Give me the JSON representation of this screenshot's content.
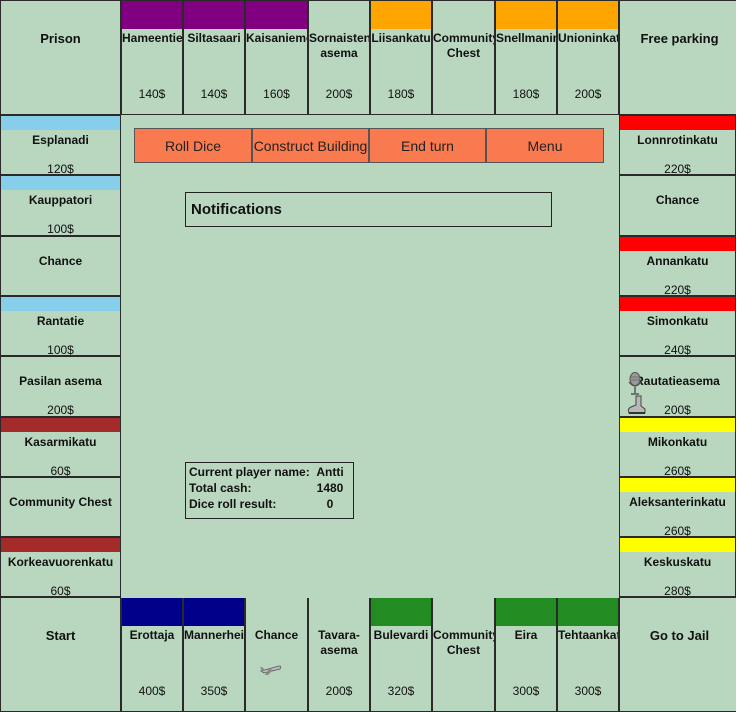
{
  "colors": {
    "board": "#b9d7bf",
    "button": "#f97a4f",
    "purple": "#800080",
    "orange": "#ffa500",
    "lightblue": "#87ceeb",
    "red": "#ff0000",
    "brown": "#a52a2a",
    "yellow": "#ffff00",
    "darkblue": "#00008b",
    "green": "#228b22"
  },
  "corners": {
    "prison": "Prison",
    "free_parking": "Free parking",
    "start": "Start",
    "go_to_jail": "Go to Jail"
  },
  "top_row": [
    {
      "name": "Hameentie",
      "price": "140$",
      "color": "#800080"
    },
    {
      "name": "Siltasaari",
      "price": "140$",
      "color": "#800080"
    },
    {
      "name": "Kaisanieme",
      "price": "160$",
      "color": "#800080"
    },
    {
      "name": "Sornaisten asema",
      "price": "200$",
      "color": ""
    },
    {
      "name": "Liisankatu",
      "price": "180$",
      "color": "#ffa500"
    },
    {
      "name": "Community Chest",
      "price": "",
      "color": ""
    },
    {
      "name": "Snellmanin",
      "price": "180$",
      "color": "#ffa500"
    },
    {
      "name": "Unioninkat",
      "price": "200$",
      "color": "#ffa500"
    }
  ],
  "bottom_row": [
    {
      "name": "Erottaja",
      "price": "400$",
      "color": "#00008b"
    },
    {
      "name": "Mannerhei",
      "price": "350$",
      "color": "#00008b"
    },
    {
      "name": "Chance",
      "price": "",
      "color": ""
    },
    {
      "name": "Tavara-asema",
      "price": "200$",
      "color": ""
    },
    {
      "name": "Bulevardi",
      "price": "320$",
      "color": "#228b22"
    },
    {
      "name": "Community Chest",
      "price": "",
      "color": ""
    },
    {
      "name": "Eira",
      "price": "300$",
      "color": "#228b22"
    },
    {
      "name": "Tehtaankat",
      "price": "300$",
      "color": "#228b22"
    }
  ],
  "left_col": [
    {
      "name": "Esplanadi",
      "price": "120$",
      "color": "#87ceeb"
    },
    {
      "name": "Kauppatori",
      "price": "100$",
      "color": "#87ceeb"
    },
    {
      "name": "Chance",
      "price": "",
      "color": ""
    },
    {
      "name": "Rantatie",
      "price": "100$",
      "color": "#87ceeb"
    },
    {
      "name": "Pasilan asema",
      "price": "200$",
      "color": ""
    },
    {
      "name": "Kasarmikatu",
      "price": "60$",
      "color": "#a52a2a"
    },
    {
      "name": "Community Chest",
      "price": "",
      "color": ""
    },
    {
      "name": "Korkeavuorenkatu",
      "price": "60$",
      "color": "#a52a2a"
    }
  ],
  "right_col": [
    {
      "name": "Lonnrotinkatu",
      "price": "220$",
      "color": "#ff0000"
    },
    {
      "name": "Chance",
      "price": "",
      "color": ""
    },
    {
      "name": "Annankatu",
      "price": "220$",
      "color": "#ff0000"
    },
    {
      "name": "Simonkatu",
      "price": "240$",
      "color": "#ff0000"
    },
    {
      "name": "Rautatieasema",
      "price": "200$",
      "color": ""
    },
    {
      "name": "Mikonkatu",
      "price": "260$",
      "color": "#ffff00"
    },
    {
      "name": "Aleksanterinkatu",
      "price": "260$",
      "color": "#ffff00"
    },
    {
      "name": "Keskuskatu",
      "price": "280$",
      "color": "#ffff00"
    }
  ],
  "buttons": {
    "roll": "Roll Dice",
    "construct": "Construct Building",
    "end_turn": "End turn",
    "menu": "Menu"
  },
  "notifications": {
    "title": "Notifications"
  },
  "player_info": {
    "name_label": "Current player name:",
    "name_value": "Antti",
    "cash_label": "Total cash:",
    "cash_value": "1480",
    "dice_label": "Dice roll result:",
    "dice_value": "0"
  },
  "tokens": [
    "microphone-token-icon",
    "boot-token-icon",
    "airplane-token-icon"
  ]
}
